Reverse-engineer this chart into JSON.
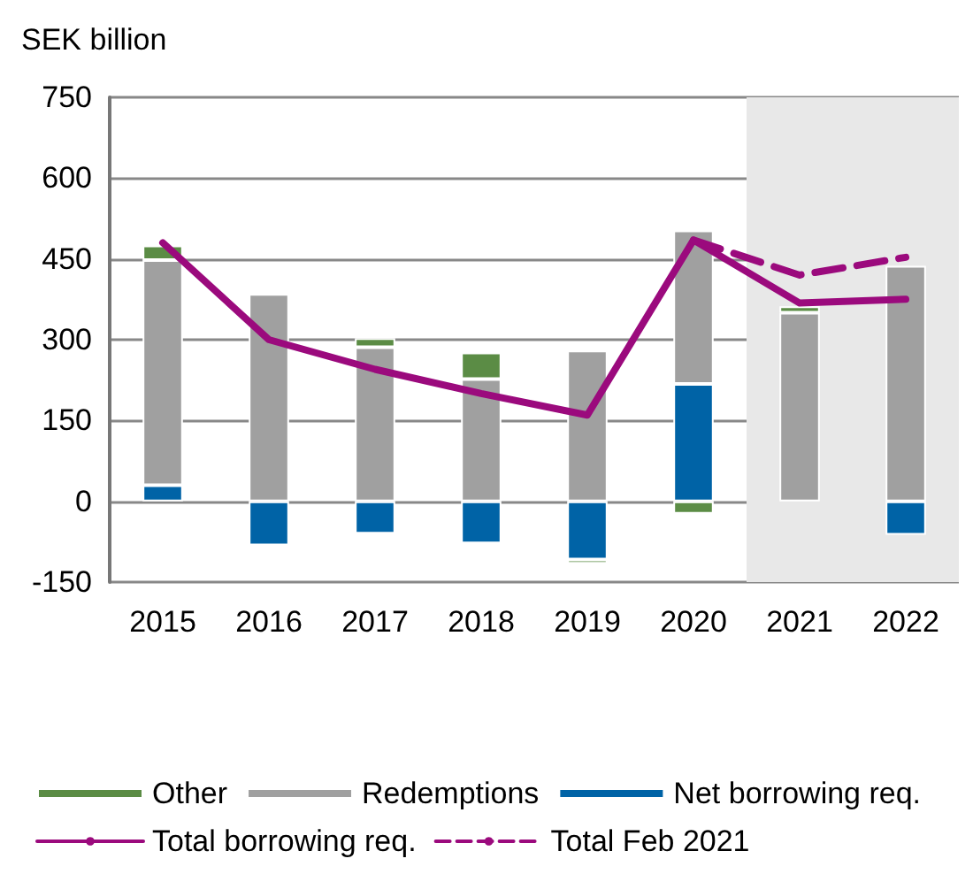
{
  "chart_data": {
    "type": "bar",
    "ylabel": "SEK billion",
    "categories": [
      "2015",
      "2016",
      "2017",
      "2018",
      "2019",
      "2020",
      "2021",
      "2022"
    ],
    "stacked": true,
    "series": [
      {
        "name": "Net borrowing req.",
        "color": "#0063a6",
        "values": [
          30,
          -82,
          -60,
          -78,
          -108,
          218,
          null,
          -62
        ]
      },
      {
        "name": "Redemptions",
        "color": "#a0a0a0",
        "values": [
          418,
          385,
          286,
          227,
          280,
          285,
          350,
          437
        ]
      },
      {
        "name": "Other",
        "color": "#5b8c45",
        "values": [
          27,
          null,
          17,
          49,
          -8,
          -23,
          12,
          null
        ]
      },
      {
        "name": "Total borrowing req.",
        "type": "line",
        "color": "#9b0a7d",
        "line_style": "solid",
        "values": [
          480,
          300,
          245,
          200,
          160,
          485,
          368,
          375
        ]
      },
      {
        "name": "Total Feb 2021",
        "type": "line",
        "color": "#9b0a7d",
        "line_style": "dashed",
        "values": [
          null,
          null,
          null,
          null,
          null,
          485,
          420,
          453
        ]
      }
    ],
    "ylim": [
      -150,
      750
    ],
    "yticks": [
      -150,
      0,
      150,
      300,
      450,
      600,
      750
    ],
    "grid": "y",
    "legend": "bottom",
    "marker": "none",
    "bands": [
      {
        "axis": "x",
        "from": "2021",
        "to": "2022",
        "label": null,
        "color": "#e8e8e8"
      }
    ]
  }
}
